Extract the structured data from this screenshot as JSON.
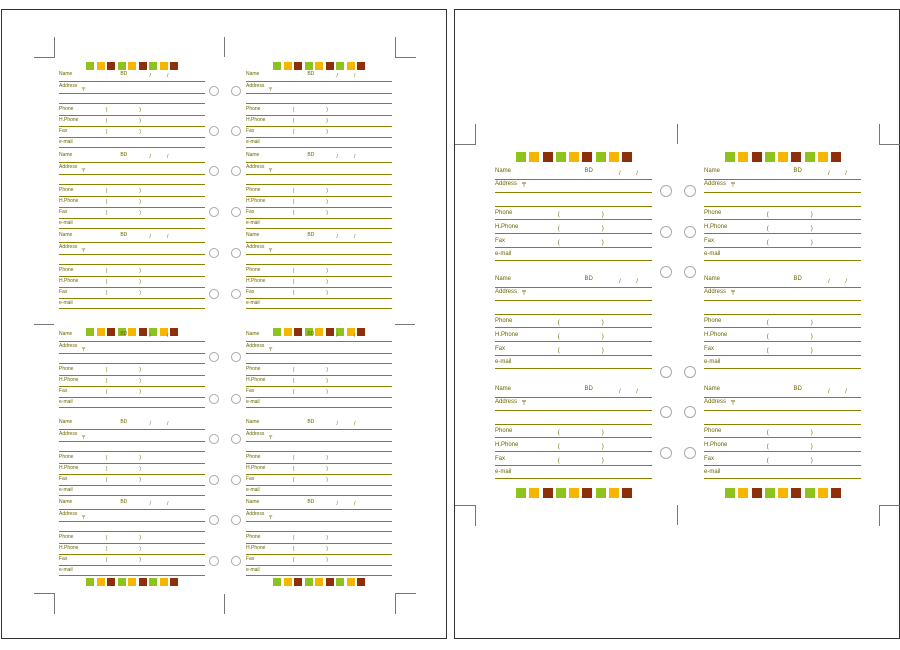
{
  "colors": {
    "line": "#8a8200",
    "text": "#6b6500",
    "swatches": [
      "#8dc21f",
      "#f6b600",
      "#8c2f0a",
      "#8dc21f",
      "#f6b600",
      "#8c2f0a",
      "#8dc21f",
      "#f6b600",
      "#8c2f0a"
    ]
  },
  "left_page": {
    "field_labels": {
      "name": "Name",
      "birthday": "BD",
      "address": "Address",
      "postal_mark": "〒",
      "phone": "Phone",
      "home_phone": "H.Phone",
      "fax": "Fax",
      "email": "e-mail"
    },
    "cards_per_column": 3,
    "blocks": 2,
    "columns": 2
  },
  "right_page": {
    "field_labels": {
      "name": "Name",
      "birthday": "BD",
      "address": "Address",
      "postal_mark": "〒",
      "phone": "Phone",
      "home_phone": "H.Phone",
      "fax": "Fax",
      "email": "e-mail"
    },
    "cards_per_column": 3,
    "columns": 2
  }
}
